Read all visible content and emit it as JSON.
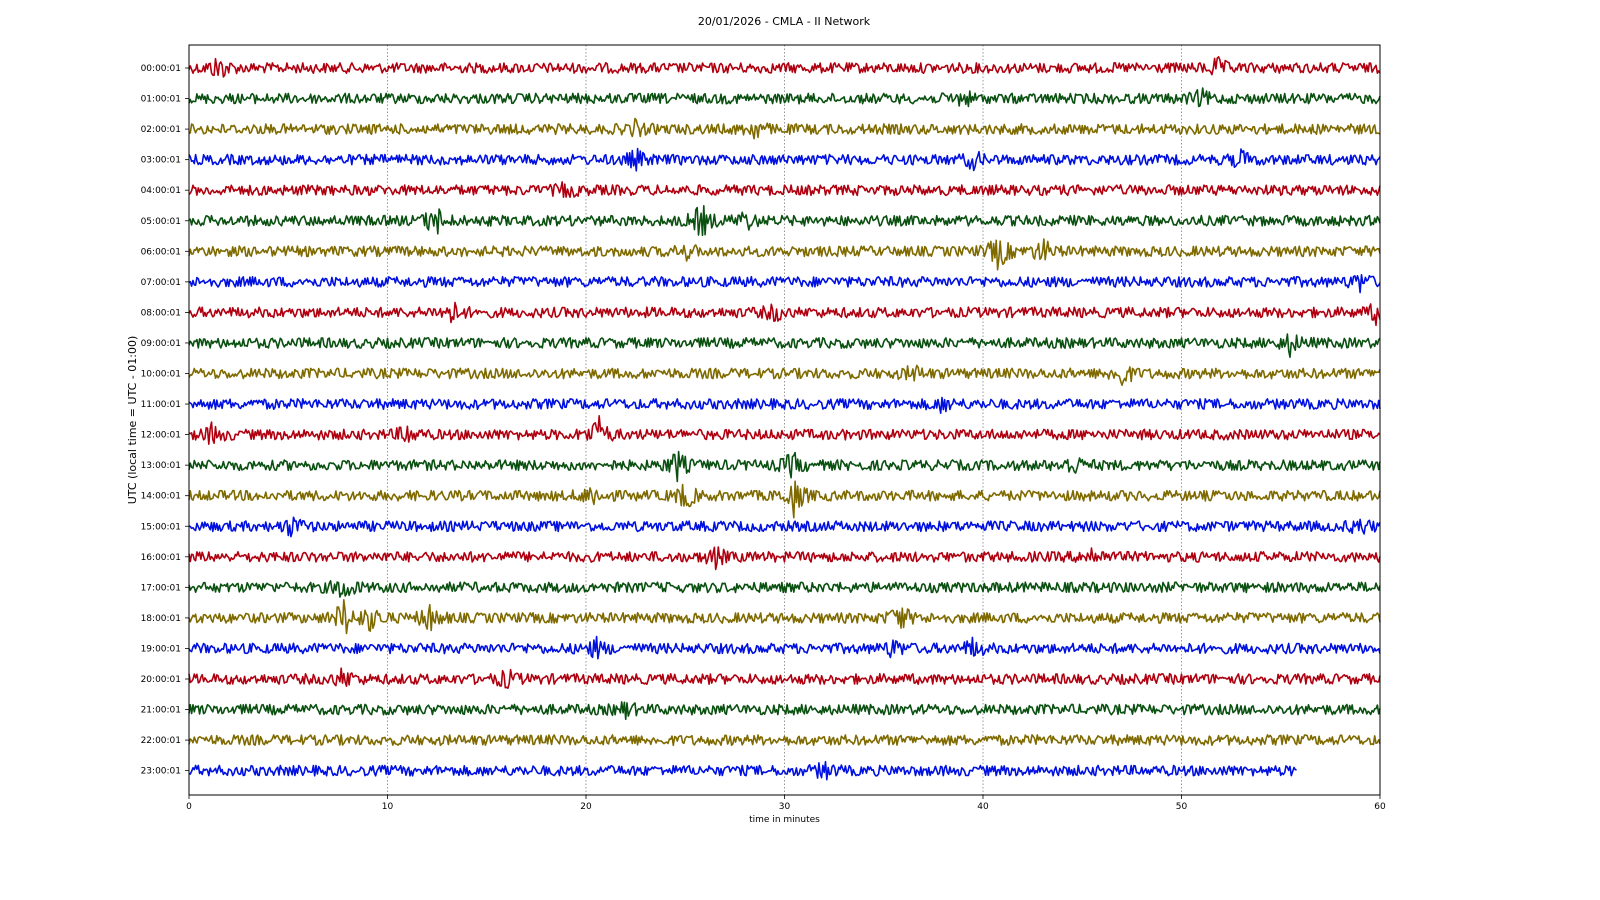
{
  "chart_data": {
    "type": "line",
    "title": "20/01/2026 - CMLA - II Network",
    "xlabel": "time in minutes",
    "ylabel": "UTC (local time = UTC - 01:00)",
    "xlim": [
      0,
      60
    ],
    "xticks": [
      0,
      10,
      20,
      30,
      40,
      50,
      60
    ],
    "grid": "vertical dotted at x ticks",
    "colors": [
      "#b00010",
      "#0a5010",
      "#7f6a00",
      "#0010e0"
    ],
    "rows": [
      {
        "label": "00:00:01",
        "end": 60,
        "events": [
          [
            1.5,
            2.2
          ],
          [
            51.8,
            1.5
          ]
        ]
      },
      {
        "label": "01:00:01",
        "end": 60,
        "events": [
          [
            39,
            1.3
          ],
          [
            51,
            1.3
          ]
        ]
      },
      {
        "label": "02:00:01",
        "end": 60,
        "events": [
          [
            28.5,
            1.6
          ],
          [
            22.5,
            1.2
          ]
        ]
      },
      {
        "label": "03:00:01",
        "end": 60,
        "events": [
          [
            22.5,
            1.6
          ],
          [
            39.5,
            1.4
          ],
          [
            53,
            1.4
          ]
        ]
      },
      {
        "label": "04:00:01",
        "end": 60,
        "events": [
          [
            19,
            1.2
          ]
        ]
      },
      {
        "label": "05:00:01",
        "end": 60,
        "events": [
          [
            12.4,
            3.0
          ],
          [
            25.8,
            3.2
          ],
          [
            28,
            1.8
          ]
        ]
      },
      {
        "label": "06:00:01",
        "end": 60,
        "events": [
          [
            40.8,
            3.4
          ],
          [
            43,
            2.2
          ],
          [
            25,
            1.2
          ]
        ]
      },
      {
        "label": "07:00:01",
        "end": 60,
        "events": [
          [
            59,
            1.5
          ]
        ]
      },
      {
        "label": "08:00:01",
        "end": 60,
        "events": [
          [
            13.2,
            2.0
          ],
          [
            29.5,
            1.4
          ],
          [
            59.8,
            1.5
          ]
        ]
      },
      {
        "label": "09:00:01",
        "end": 60,
        "events": [
          [
            55.5,
            2.0
          ]
        ]
      },
      {
        "label": "10:00:01",
        "end": 60,
        "events": [
          [
            47,
            2.4
          ],
          [
            36.5,
            1.3
          ]
        ]
      },
      {
        "label": "11:00:01",
        "end": 60,
        "events": [
          [
            38,
            1.3
          ]
        ]
      },
      {
        "label": "12:00:01",
        "end": 60,
        "events": [
          [
            20.6,
            3.4
          ],
          [
            1.2,
            1.8
          ],
          [
            11,
            1.6
          ]
        ]
      },
      {
        "label": "13:00:01",
        "end": 60,
        "events": [
          [
            24.6,
            2.6
          ],
          [
            30.4,
            2.2
          ],
          [
            44.5,
            1.8
          ]
        ]
      },
      {
        "label": "14:00:01",
        "end": 60,
        "events": [
          [
            30.5,
            3.6
          ],
          [
            25,
            2.4
          ],
          [
            20.3,
            2.0
          ]
        ]
      },
      {
        "label": "15:00:01",
        "end": 60,
        "events": [
          [
            5.2,
            1.8
          ],
          [
            59,
            1.4
          ]
        ]
      },
      {
        "label": "16:00:01",
        "end": 60,
        "events": [
          [
            26.5,
            1.8
          ],
          [
            45.5,
            1.5
          ]
        ]
      },
      {
        "label": "17:00:01",
        "end": 60,
        "events": [
          [
            7.8,
            2.4
          ]
        ]
      },
      {
        "label": "18:00:01",
        "end": 60,
        "events": [
          [
            7.8,
            3.6
          ],
          [
            9.2,
            2.4
          ],
          [
            12.1,
            2.4
          ],
          [
            35.8,
            2.6
          ]
        ]
      },
      {
        "label": "19:00:01",
        "end": 60,
        "events": [
          [
            20.5,
            1.6
          ],
          [
            35.5,
            1.6
          ],
          [
            39.5,
            1.6
          ]
        ]
      },
      {
        "label": "20:00:01",
        "end": 60,
        "events": [
          [
            7.8,
            1.8
          ],
          [
            16,
            1.5
          ]
        ]
      },
      {
        "label": "21:00:01",
        "end": 60,
        "events": [
          [
            22,
            1.2
          ]
        ]
      },
      {
        "label": "22:00:01",
        "end": 60,
        "events": []
      },
      {
        "label": "23:00:01",
        "end": 55.8,
        "events": [
          [
            32,
            1.4
          ]
        ]
      }
    ]
  }
}
